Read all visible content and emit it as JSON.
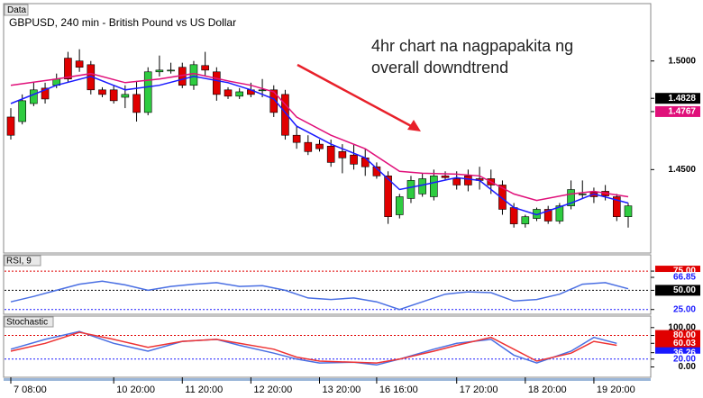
{
  "window_label": "Data",
  "chart_data": [
    {
      "type": "candlestick",
      "title": "GBPUSD, 240 min - British Pound vs US Dollar",
      "annotation": [
        "4hr chart na nagpapakita ng",
        "overall downdtrend"
      ],
      "ylim": [
        1.412,
        1.526
      ],
      "yticks": [
        {
          "value": 1.5,
          "label": "1.5000"
        },
        {
          "value": 1.45,
          "label": "1.4500"
        }
      ],
      "price_markers": [
        {
          "value": 1.4828,
          "label": "1.4828",
          "bg": "#000000",
          "fg": "#ffffff"
        },
        {
          "value": 1.4767,
          "label": "1.4767",
          "bg": "#e0107a",
          "fg": "#ffffff"
        }
      ],
      "xticks": [
        {
          "value": 0,
          "label": "7 08:00"
        },
        {
          "value": 9,
          "label": "10 20:00"
        },
        {
          "value": 15,
          "label": "11 20:00"
        },
        {
          "value": 21,
          "label": "12 20:00"
        },
        {
          "value": 27,
          "label": "13 20:00"
        },
        {
          "value": 32,
          "label": "16 16:00"
        },
        {
          "value": 39,
          "label": "17 20:00"
        },
        {
          "value": 45,
          "label": "18 20:00"
        },
        {
          "value": 51,
          "label": "19 20:00"
        }
      ],
      "up_color": "#2ecc40",
      "down_color": "#e00000",
      "open": [
        1.4742,
        1.4721,
        1.4804,
        1.4875,
        1.4888,
        1.5013,
        1.5,
        1.4983,
        1.4867,
        1.4867,
        1.4833,
        1.4846,
        1.4763,
        1.495,
        1.4958,
        1.4971,
        1.4888,
        1.4979,
        1.495,
        1.4867,
        1.4838,
        1.4867,
        1.4867,
        1.4867,
        1.4846,
        1.4658,
        1.4625,
        1.4617,
        1.4608,
        1.4583,
        1.4567,
        1.4554,
        1.4513,
        1.4471,
        1.4292,
        1.4367,
        1.4388,
        1.4375,
        1.4471,
        1.4458,
        1.4471,
        1.4458,
        1.4458,
        1.4429,
        1.4325,
        1.425,
        1.4275,
        1.4317,
        1.4263,
        1.4333,
        1.4388,
        1.4396,
        1.44,
        1.4375,
        1.4283
      ],
      "high": [
        1.4783,
        1.4846,
        1.49,
        1.49,
        1.4942,
        1.5042,
        1.5054,
        1.5,
        1.4879,
        1.4888,
        1.4888,
        1.4908,
        1.4971,
        1.5025,
        1.4992,
        1.4992,
        1.5,
        1.5042,
        1.4971,
        1.4879,
        1.4875,
        1.49,
        1.4917,
        1.4888,
        1.4867,
        1.47,
        1.4658,
        1.4638,
        1.4638,
        1.4617,
        1.4617,
        1.4596,
        1.4533,
        1.4492,
        1.4388,
        1.4471,
        1.4483,
        1.45,
        1.4492,
        1.4492,
        1.45,
        1.4513,
        1.45,
        1.445,
        1.4346,
        1.4292,
        1.4325,
        1.4333,
        1.4346,
        1.445,
        1.445,
        1.4417,
        1.4429,
        1.4388,
        1.4346
      ],
      "low": [
        1.4638,
        1.4708,
        1.4792,
        1.4804,
        1.4875,
        1.49,
        1.495,
        1.4846,
        1.4833,
        1.4804,
        1.4783,
        1.4721,
        1.475,
        1.4929,
        1.4942,
        1.4875,
        1.4867,
        1.4929,
        1.4817,
        1.4825,
        1.4825,
        1.4833,
        1.4833,
        1.4742,
        1.4638,
        1.4596,
        1.4567,
        1.4583,
        1.4513,
        1.4483,
        1.45,
        1.4471,
        1.4458,
        1.425,
        1.4275,
        1.4346,
        1.4375,
        1.4358,
        1.445,
        1.4408,
        1.44,
        1.4408,
        1.4388,
        1.4292,
        1.4233,
        1.4233,
        1.4263,
        1.425,
        1.425,
        1.4317,
        1.4367,
        1.4346,
        1.4358,
        1.4263,
        1.4233
      ],
      "close": [
        1.4658,
        1.4817,
        1.4867,
        1.4825,
        1.4917,
        1.4917,
        1.4971,
        1.4867,
        1.4846,
        1.4817,
        1.4846,
        1.4763,
        1.495,
        1.4958,
        1.4958,
        1.4888,
        1.4983,
        1.4958,
        1.4846,
        1.4838,
        1.4858,
        1.4846,
        1.4867,
        1.4763,
        1.4658,
        1.4625,
        1.4583,
        1.4596,
        1.4533,
        1.4554,
        1.4525,
        1.4513,
        1.4471,
        1.4283,
        1.4375,
        1.445,
        1.4458,
        1.4471,
        1.4463,
        1.4429,
        1.4429,
        1.445,
        1.4429,
        1.4317,
        1.425,
        1.4283,
        1.4317,
        1.4263,
        1.4333,
        1.4408,
        1.4388,
        1.4375,
        1.4379,
        1.4283,
        1.4333
      ],
      "lines": [
        {
          "color": "#1a1aff",
          "x": [
            0,
            4,
            7,
            10,
            13,
            16,
            19,
            21,
            23,
            25,
            28,
            31,
            34,
            36,
            39,
            41,
            44,
            46,
            49,
            51,
            54
          ],
          "values": [
            1.4804,
            1.4888,
            1.4929,
            1.4867,
            1.4888,
            1.4929,
            1.49,
            1.4867,
            1.4825,
            1.47,
            1.4617,
            1.4554,
            1.4408,
            1.4429,
            1.4463,
            1.445,
            1.4325,
            1.4292,
            1.4346,
            1.4388,
            1.4346
          ]
        },
        {
          "color": "#e0107a",
          "x": [
            0,
            4,
            7,
            10,
            13,
            16,
            19,
            21,
            23,
            25,
            28,
            31,
            34,
            36,
            39,
            41,
            44,
            46,
            49,
            51,
            54
          ],
          "values": [
            1.4888,
            1.4917,
            1.4942,
            1.49,
            1.4917,
            1.4942,
            1.4908,
            1.4888,
            1.4858,
            1.4742,
            1.4658,
            1.4596,
            1.4492,
            1.4483,
            1.4479,
            1.4471,
            1.4388,
            1.4358,
            1.4388,
            1.44,
            1.4375
          ]
        }
      ]
    },
    {
      "type": "line",
      "title": "RSI, 9",
      "ylim": [
        20,
        95
      ],
      "yticks": [
        {
          "value": 75,
          "label": "75.00",
          "bg": "#e00000",
          "fg": "#ffffff",
          "line": "#e00000"
        },
        {
          "value": 66.85,
          "label": "66.85",
          "bg": "#ffffff",
          "fg": "#1a1aff"
        },
        {
          "value": 50,
          "label": "50.00",
          "bg": "#000000",
          "fg": "#ffffff",
          "line": "#000000"
        },
        {
          "value": 25,
          "label": "25.00",
          "bg": "#ffffff",
          "fg": "#1a1aff",
          "line": "#1a1aff"
        }
      ],
      "series": [
        {
          "color": "#4a6fe3",
          "x": [
            0,
            2,
            4,
            6,
            8,
            10,
            12,
            14,
            16,
            18,
            20,
            22,
            24,
            26,
            28,
            30,
            32,
            34,
            36,
            38,
            40,
            42,
            44,
            46,
            48,
            50,
            52,
            54
          ],
          "values": [
            35,
            42,
            50,
            58,
            62,
            57,
            50,
            55,
            58,
            60,
            55,
            56,
            50,
            40,
            38,
            40,
            35,
            25,
            35,
            45,
            48,
            47,
            36,
            38,
            45,
            58,
            60,
            52
          ]
        }
      ]
    },
    {
      "type": "line",
      "title": "Stochastic",
      "ylim": [
        -24,
        127
      ],
      "yticks": [
        {
          "value": 100,
          "label": "100.00",
          "bg": "#ffffff",
          "fg": "#000000"
        },
        {
          "value": 80,
          "label": "80.00",
          "bg": "#e00000",
          "fg": "#ffffff",
          "line": "#e00000"
        },
        {
          "value": 60.03,
          "label": "60.03",
          "bg": "#e00000",
          "fg": "#ffffff"
        },
        {
          "value": 36.26,
          "label": "36.26",
          "bg": "#1a1aff",
          "fg": "#ffffff"
        },
        {
          "value": 20,
          "label": "20.00",
          "bg": "#ffffff",
          "fg": "#1a1aff",
          "line": "#1a1aff"
        },
        {
          "value": 0,
          "label": "0.00",
          "bg": "#ffffff",
          "fg": "#000000"
        }
      ],
      "series": [
        {
          "color": "#4a6fe3",
          "x": [
            0,
            3,
            6,
            9,
            12,
            15,
            18,
            20,
            23,
            25,
            27,
            30,
            32,
            34,
            37,
            39,
            42,
            44,
            46,
            49,
            51,
            53
          ],
          "values": [
            45,
            70,
            90,
            60,
            40,
            65,
            70,
            55,
            35,
            20,
            10,
            12,
            5,
            20,
            45,
            60,
            70,
            30,
            10,
            40,
            75,
            60
          ]
        },
        {
          "color": "#ee3333",
          "x": [
            0,
            3,
            6,
            9,
            12,
            15,
            18,
            20,
            23,
            25,
            27,
            30,
            32,
            34,
            37,
            39,
            42,
            44,
            46,
            49,
            51,
            53
          ],
          "values": [
            40,
            60,
            88,
            70,
            50,
            65,
            70,
            60,
            45,
            25,
            15,
            12,
            10,
            20,
            40,
            55,
            75,
            45,
            15,
            35,
            65,
            55
          ]
        }
      ]
    }
  ]
}
